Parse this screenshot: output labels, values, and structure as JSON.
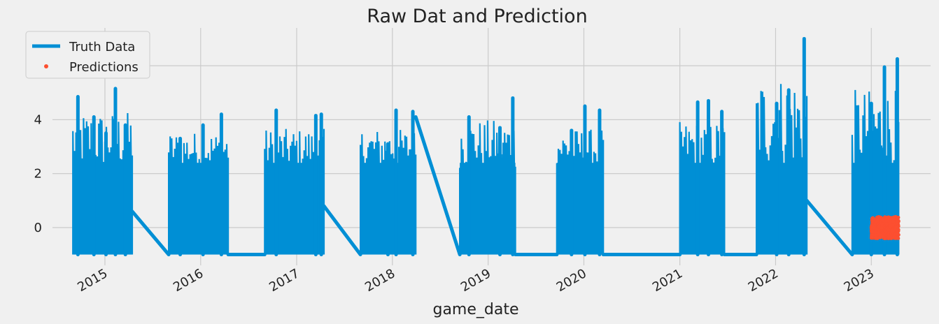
{
  "chart_data": {
    "type": "line",
    "title": "Raw Dat and Prediction",
    "xlabel": "game_date",
    "ylabel": "",
    "xlim": [
      "2014-06-15",
      "2023-08-15"
    ],
    "ylim": [
      -1.4,
      7.4
    ],
    "x_tick_labels": [
      "2015",
      "2016",
      "2017",
      "2018",
      "2019",
      "2020",
      "2021",
      "2022",
      "2023"
    ],
    "x_ticks": [
      "2015-01-01",
      "2016-01-01",
      "2017-01-01",
      "2018-01-01",
      "2019-01-01",
      "2020-01-01",
      "2021-01-01",
      "2022-01-01",
      "2023-01-01"
    ],
    "y_ticks": [
      0,
      2,
      4,
      6
    ],
    "y_tick_labels": [
      "0",
      "2",
      "4",
      "6"
    ],
    "grid": true,
    "legend_position": "top-left",
    "series": [
      {
        "name": "Truth Data",
        "style": "line",
        "color": "#008fd5",
        "seasons": [
          {
            "start": "2014-09-01",
            "end": "2015-04-15",
            "min": -1.0,
            "max": 5.2,
            "peaks": [
              [
                "2014-09-20",
                4.85
              ],
              [
                "2014-11-20",
                4.1
              ],
              [
                "2015-02-10",
                5.15
              ],
              [
                "2015-03-20",
                3.8
              ],
              [
                "2015-01-05",
                3.5
              ]
            ]
          },
          {
            "start": "2015-09-01",
            "end": "2016-04-15",
            "min": -1.0,
            "max": 4.2,
            "peaks": [
              [
                "2015-10-15",
                3.3
              ],
              [
                "2016-01-10",
                3.8
              ],
              [
                "2016-03-20",
                4.2
              ]
            ]
          },
          {
            "start": "2016-09-01",
            "end": "2017-04-15",
            "min": -1.0,
            "max": 4.35,
            "peaks": [
              [
                "2016-10-15",
                4.35
              ],
              [
                "2017-03-15",
                4.15
              ],
              [
                "2017-04-05",
                4.2
              ]
            ]
          },
          {
            "start": "2017-09-01",
            "end": "2018-03-31",
            "min": -1.0,
            "max": 4.35,
            "peaks": [
              [
                "2017-12-15",
                3.1
              ],
              [
                "2018-01-15",
                4.35
              ],
              [
                "2018-03-20",
                4.3
              ]
            ]
          },
          {
            "start": "2018-09-15",
            "end": "2019-04-15",
            "min": -1.0,
            "max": 4.8,
            "peaks": [
              [
                "2018-10-20",
                4.1
              ],
              [
                "2019-02-15",
                3.7
              ],
              [
                "2019-04-05",
                4.8
              ]
            ]
          },
          {
            "start": "2019-09-20",
            "end": "2020-03-15",
            "min": -1.0,
            "max": 4.35,
            "peaks": [
              [
                "2019-11-15",
                3.6
              ],
              [
                "2020-01-05",
                4.5
              ],
              [
                "2020-03-01",
                4.35
              ]
            ]
          },
          {
            "start": "2021-01-01",
            "end": "2021-06-20",
            "min": -1.0,
            "max": 4.7,
            "peaks": [
              [
                "2021-03-10",
                4.65
              ],
              [
                "2021-04-20",
                4.7
              ],
              [
                "2021-06-10",
                4.3
              ]
            ]
          },
          {
            "start": "2021-10-20",
            "end": "2022-04-30",
            "min": -1.0,
            "max": 7.0,
            "peaks": [
              [
                "2022-01-05",
                4.6
              ],
              [
                "2022-02-20",
                5.1
              ],
              [
                "2022-04-20",
                7.0
              ]
            ]
          },
          {
            "start": "2022-10-20",
            "end": "2023-04-15",
            "min": -1.0,
            "max": 6.3,
            "peaks": [
              [
                "2023-01-01",
                4.6
              ],
              [
                "2023-02-20",
                5.95
              ],
              [
                "2023-04-10",
                6.25
              ]
            ]
          }
        ],
        "connectors": [
          [
            [
              "2015-04-15",
              0.6
            ],
            [
              "2015-09-01",
              -1.0
            ]
          ],
          [
            [
              "2016-04-15",
              -1.0
            ],
            [
              "2016-09-01",
              -1.0
            ]
          ],
          [
            [
              "2017-04-15",
              0.8
            ],
            [
              "2017-09-01",
              -1.0
            ]
          ],
          [
            [
              "2018-03-31",
              4.1
            ],
            [
              "2018-09-15",
              -1.0
            ]
          ],
          [
            [
              "2019-04-15",
              -1.0
            ],
            [
              "2019-09-20",
              -1.0
            ]
          ],
          [
            [
              "2020-03-15",
              -1.0
            ],
            [
              "2021-01-01",
              -1.0
            ]
          ],
          [
            [
              "2021-06-20",
              -1.0
            ],
            [
              "2021-10-20",
              -1.0
            ]
          ],
          [
            [
              "2022-04-30",
              1.0
            ],
            [
              "2022-10-20",
              -1.0
            ]
          ]
        ]
      },
      {
        "name": "Predictions",
        "style": "markers",
        "color": "#fc4f30",
        "x_range": [
          "2023-01-01",
          "2023-04-15"
        ],
        "y_range": [
          -0.45,
          0.35
        ],
        "center": 0.0
      }
    ]
  }
}
